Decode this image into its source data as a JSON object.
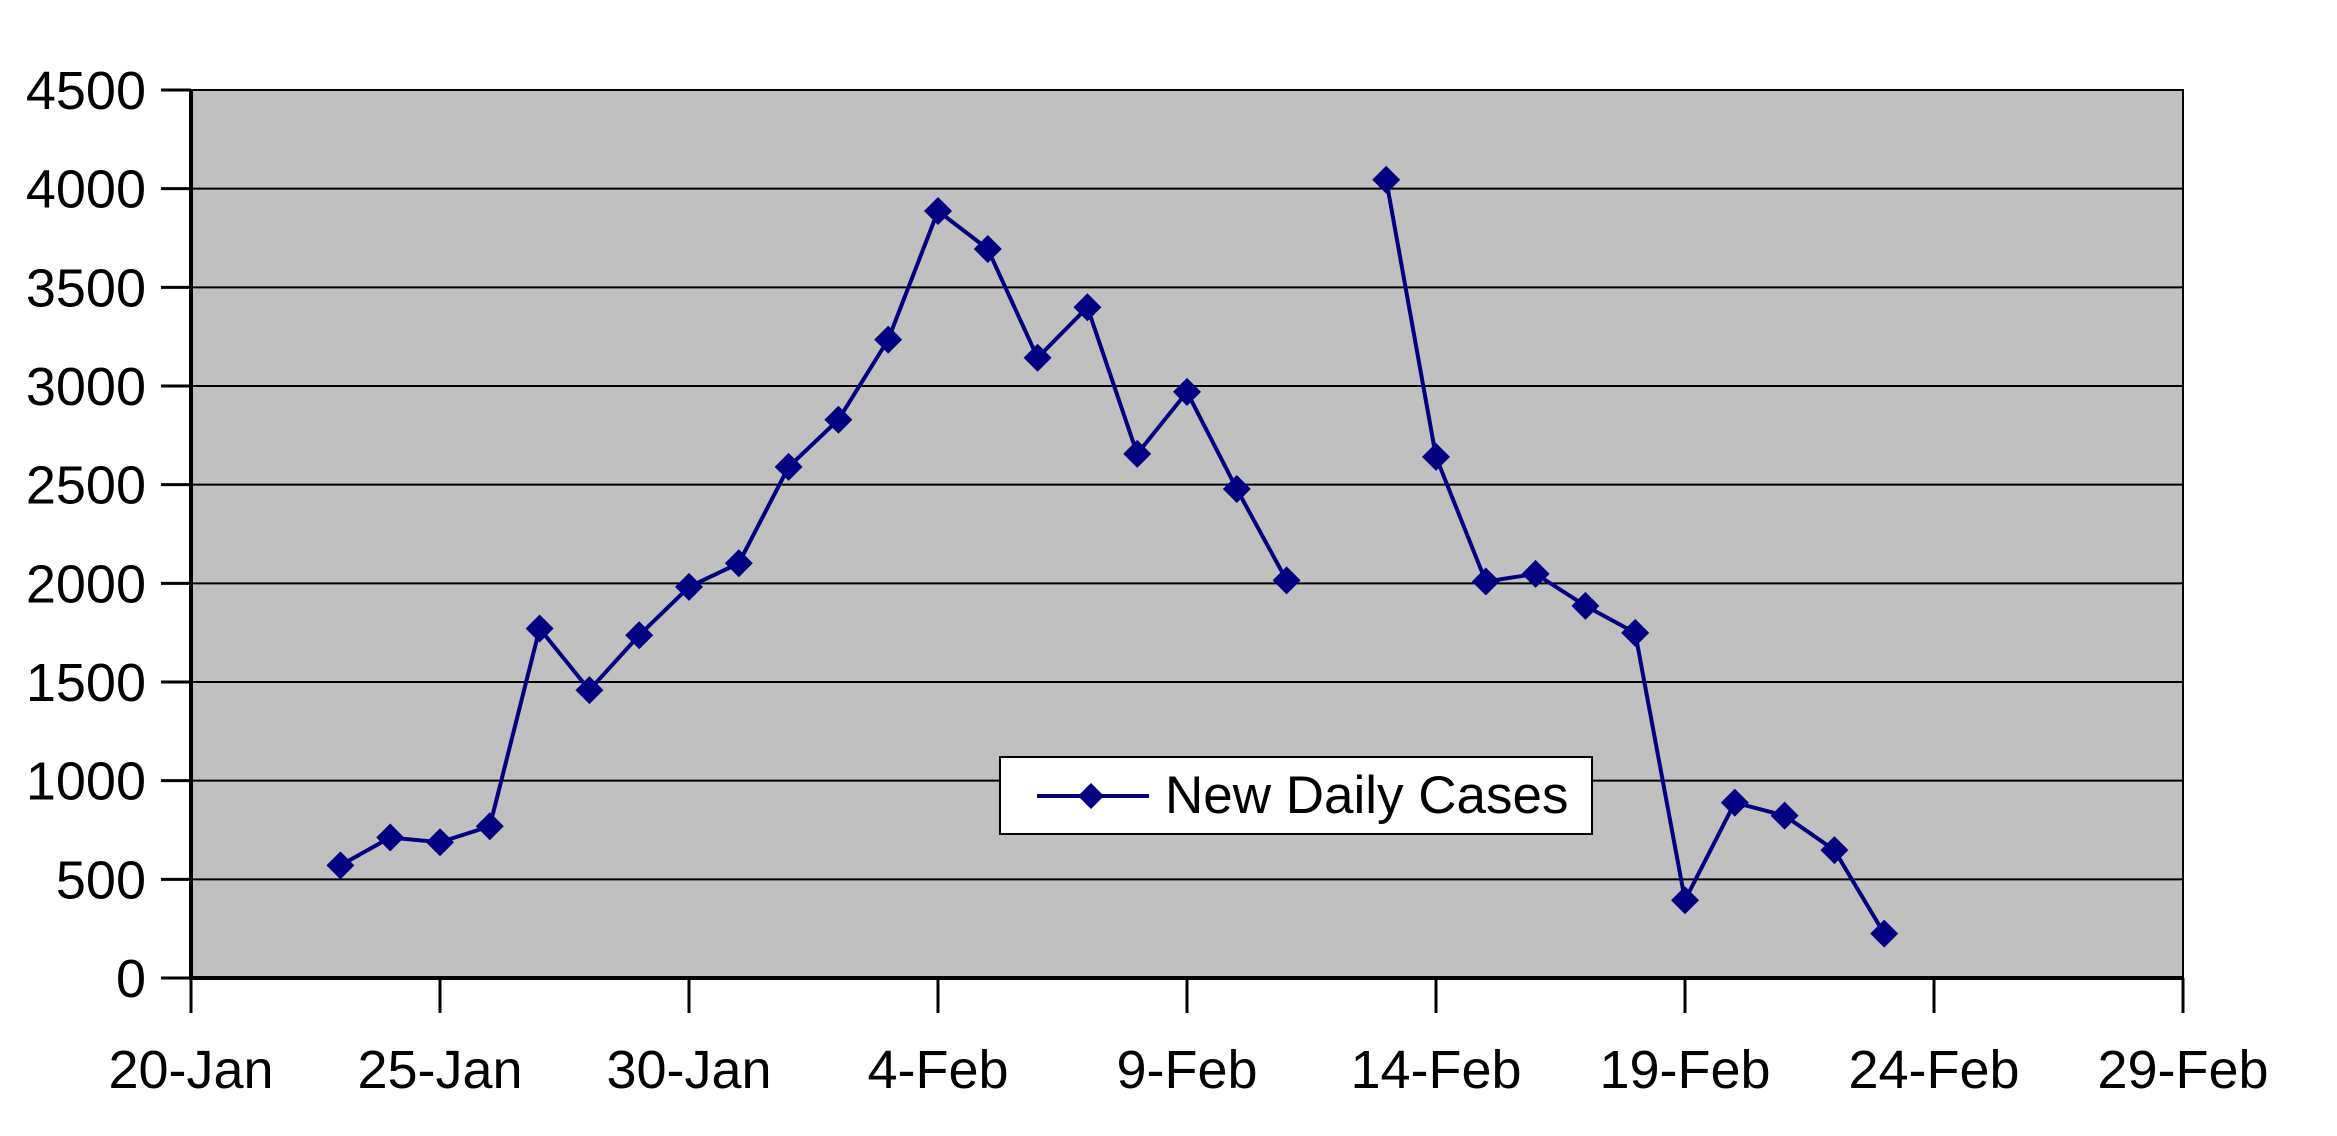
{
  "page": {
    "background": "#FFFFFF"
  },
  "chart_data": {
    "type": "line",
    "title": "",
    "series": [
      {
        "name": "New Daily Cases",
        "dates": [
          "23-Jan",
          "24-Jan",
          "25-Jan",
          "26-Jan",
          "27-Jan",
          "28-Jan",
          "29-Jan",
          "30-Jan",
          "31-Jan",
          "1-Feb",
          "2-Feb",
          "3-Feb",
          "4-Feb",
          "5-Feb",
          "6-Feb",
          "7-Feb",
          "8-Feb",
          "9-Feb",
          "10-Feb",
          "11-Feb",
          "12-Feb",
          "13-Feb",
          "14-Feb",
          "15-Feb",
          "16-Feb",
          "17-Feb",
          "18-Feb",
          "19-Feb",
          "20-Feb",
          "21-Feb",
          "22-Feb",
          "23-Feb"
        ],
        "values": [
          571,
          712,
          688,
          769,
          1771,
          1459,
          1737,
          1982,
          2102,
          2590,
          2829,
          3235,
          3887,
          3694,
          3143,
          3399,
          2656,
          2970,
          2478,
          2015,
          null,
          4045,
          2641,
          2009,
          2048,
          1886,
          1749,
          394,
          889,
          823,
          648,
          225
        ]
      }
    ],
    "marker": "diamond",
    "line_gap_note": "no point plotted for 12-Feb (line broken between 11-Feb and 13-Feb)",
    "xlabel": "",
    "ylabel": "",
    "x_axis_start": "20-Jan",
    "x_axis_end": "29-Feb",
    "x_tick_labels": [
      "20-Jan",
      "25-Jan",
      "30-Jan",
      "4-Feb",
      "9-Feb",
      "14-Feb",
      "19-Feb",
      "24-Feb",
      "29-Feb"
    ],
    "y_tick_labels": [
      "0",
      "500",
      "1000",
      "1500",
      "2000",
      "2500",
      "3000",
      "3500",
      "4000",
      "4500"
    ],
    "ylim": [
      0,
      4500
    ],
    "y_step": 500,
    "grid": "horizontal",
    "legend_position": "center-inside",
    "legend": {
      "label": "New Daily Cases",
      "marker": "diamond"
    },
    "colors": {
      "series": "#000080",
      "plot_background": "#C0C0C0",
      "gridline": "#000000",
      "axis": "#000000",
      "text": "#000000",
      "legend_background": "#FFFFFF",
      "legend_border": "#000000",
      "page_background": "#FFFFFF"
    }
  }
}
